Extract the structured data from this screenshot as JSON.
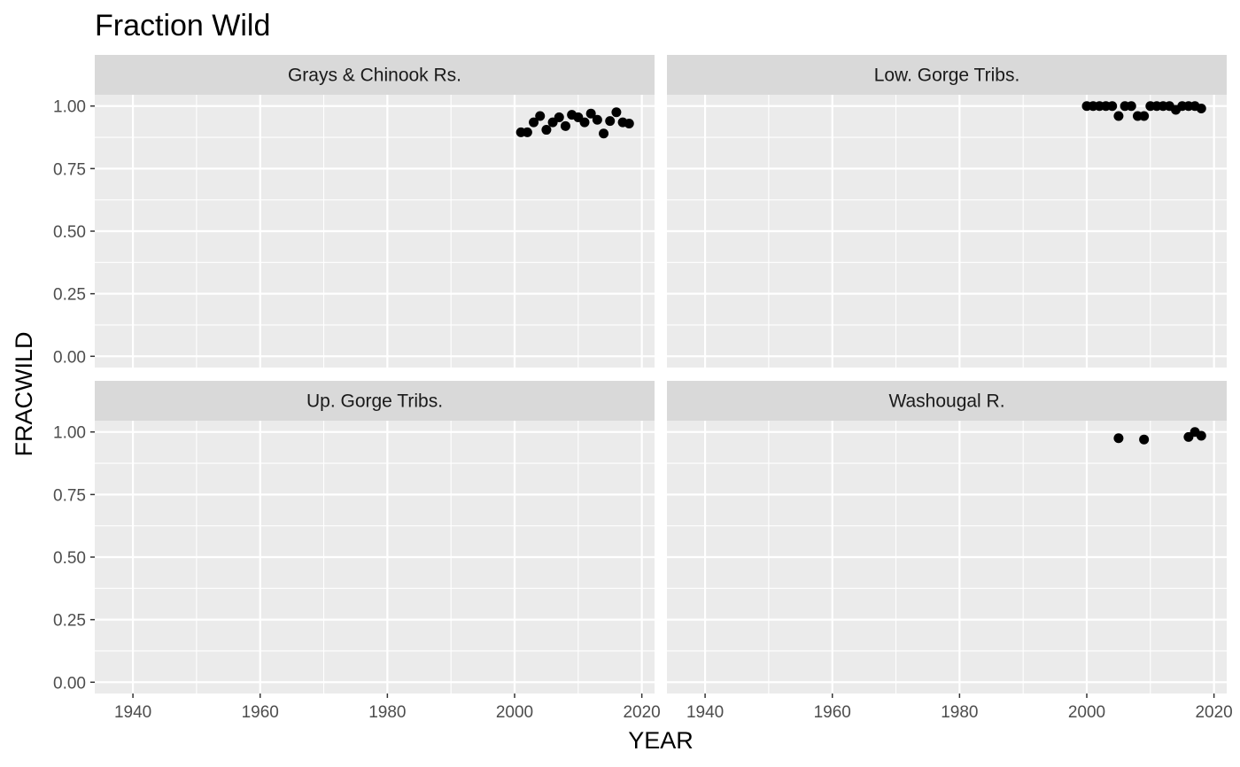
{
  "chart_data": {
    "type": "scatter",
    "title": "Fraction Wild",
    "xlabel": "YEAR",
    "ylabel": "FRACWILD",
    "xlim": [
      1934,
      2022
    ],
    "ylim": [
      -0.045,
      1.045
    ],
    "x_ticks": [
      1940,
      1960,
      1980,
      2000,
      2020
    ],
    "y_ticks": [
      0,
      0.25,
      0.5,
      0.75,
      1
    ],
    "y_tick_labels": [
      "0.00",
      "0.25",
      "0.50",
      "0.75",
      "1.00"
    ],
    "x_minor_ticks": [
      1950,
      1970,
      1990,
      2010
    ],
    "y_minor_ticks": [
      0.125,
      0.375,
      0.625,
      0.875
    ],
    "grid": true,
    "background": "#ebebeb",
    "strip_background": "#d9d9d9",
    "point_color": "#000000",
    "panels": [
      {
        "name": "Grays & Chinook Rs.",
        "points": [
          {
            "x": 2001,
            "y": 0.895
          },
          {
            "x": 2002,
            "y": 0.895
          },
          {
            "x": 2003,
            "y": 0.935
          },
          {
            "x": 2004,
            "y": 0.96
          },
          {
            "x": 2005,
            "y": 0.905
          },
          {
            "x": 2006,
            "y": 0.935
          },
          {
            "x": 2007,
            "y": 0.955
          },
          {
            "x": 2008,
            "y": 0.92
          },
          {
            "x": 2009,
            "y": 0.965
          },
          {
            "x": 2010,
            "y": 0.955
          },
          {
            "x": 2011,
            "y": 0.935
          },
          {
            "x": 2012,
            "y": 0.97
          },
          {
            "x": 2013,
            "y": 0.945
          },
          {
            "x": 2014,
            "y": 0.89
          },
          {
            "x": 2015,
            "y": 0.94
          },
          {
            "x": 2016,
            "y": 0.975
          },
          {
            "x": 2017,
            "y": 0.935
          },
          {
            "x": 2018,
            "y": 0.93
          }
        ]
      },
      {
        "name": "Low. Gorge Tribs.",
        "points": [
          {
            "x": 2000,
            "y": 1.0
          },
          {
            "x": 2001,
            "y": 1.0
          },
          {
            "x": 2002,
            "y": 1.0
          },
          {
            "x": 2003,
            "y": 1.0
          },
          {
            "x": 2004,
            "y": 1.0
          },
          {
            "x": 2005,
            "y": 0.96
          },
          {
            "x": 2006,
            "y": 1.0
          },
          {
            "x": 2007,
            "y": 1.0
          },
          {
            "x": 2008,
            "y": 0.96
          },
          {
            "x": 2009,
            "y": 0.96
          },
          {
            "x": 2010,
            "y": 1.0
          },
          {
            "x": 2011,
            "y": 1.0
          },
          {
            "x": 2012,
            "y": 1.0
          },
          {
            "x": 2013,
            "y": 1.0
          },
          {
            "x": 2014,
            "y": 0.985
          },
          {
            "x": 2015,
            "y": 1.0
          },
          {
            "x": 2016,
            "y": 1.0
          },
          {
            "x": 2017,
            "y": 1.0
          },
          {
            "x": 2018,
            "y": 0.99
          }
        ]
      },
      {
        "name": "Up. Gorge Tribs.",
        "points": []
      },
      {
        "name": "Washougal R.",
        "points": [
          {
            "x": 2005,
            "y": 0.975
          },
          {
            "x": 2009,
            "y": 0.97
          },
          {
            "x": 2016,
            "y": 0.98
          },
          {
            "x": 2017,
            "y": 1.0
          },
          {
            "x": 2018,
            "y": 0.985
          }
        ]
      }
    ]
  }
}
